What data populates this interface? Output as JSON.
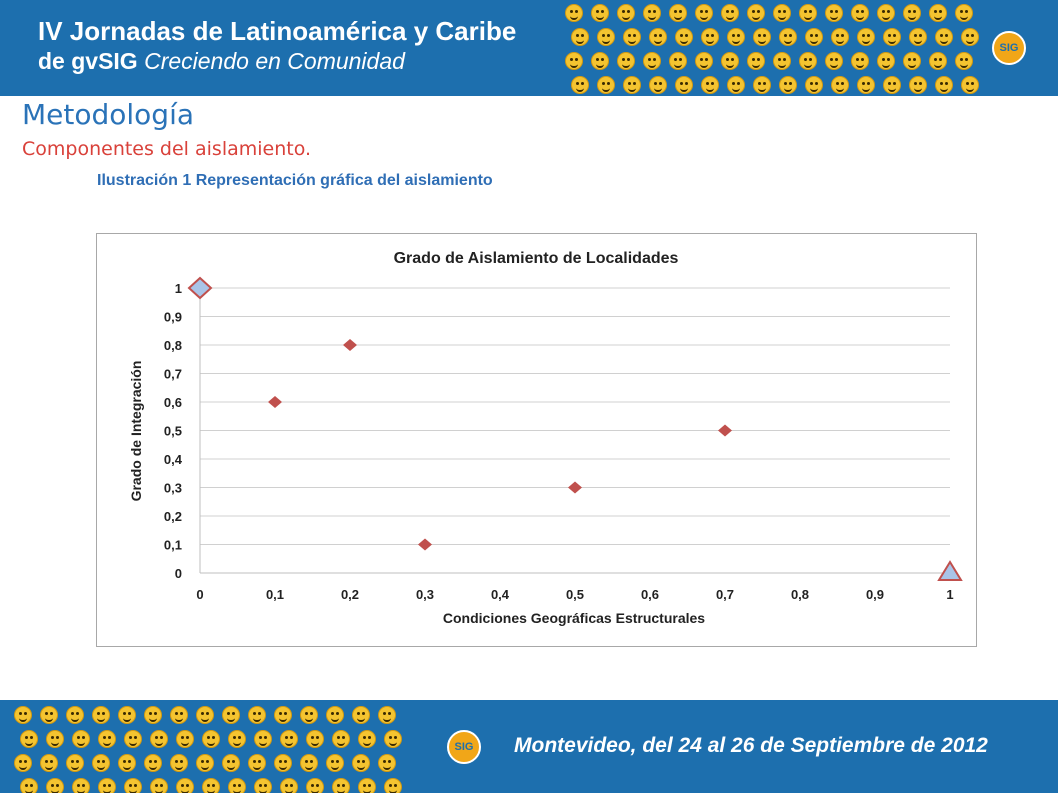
{
  "banner": {
    "title_line1": "IV Jornadas de Latinoamérica y Caribe",
    "title_line2_bold": "de gvSIG",
    "title_line2_italic": "Creciendo en Comunidad",
    "logo_text": "SIG"
  },
  "footer": {
    "text": "Montevideo, del 24 al 26 de Septiembre de 2012",
    "logo_text": "SIG"
  },
  "slide": {
    "heading": "Metodología",
    "subheading": "Componentes del aislamiento.",
    "caption": "Ilustración 1 Representación  gráfica del aislamiento"
  },
  "colors": {
    "banner_blue": "#1d6fae",
    "heading_blue": "#2a73b8",
    "subheading_red": "#d9413a",
    "marker_red": "#c0504d",
    "endpoint_fill": "#a9c4e8"
  },
  "chart_data": {
    "type": "scatter",
    "title": "Grado de Aislamiento de Localidades",
    "xlabel": "Condiciones Geográficas Estructurales",
    "ylabel": "Grado de Integración",
    "xlim": [
      0,
      1
    ],
    "ylim": [
      0,
      1
    ],
    "x_ticks": [
      "0",
      "0,1",
      "0,2",
      "0,3",
      "0,4",
      "0,5",
      "0,6",
      "0,7",
      "0,8",
      "0,9",
      "1"
    ],
    "y_ticks": [
      "0",
      "0,1",
      "0,2",
      "0,3",
      "0,4",
      "0,5",
      "0,6",
      "0,7",
      "0,8",
      "0,9",
      "1"
    ],
    "grid": "horizontal",
    "series": [
      {
        "marker": "diamond",
        "points": [
          [
            0.1,
            0.6
          ],
          [
            0.2,
            0.8
          ],
          [
            0.3,
            0.1
          ],
          [
            0.5,
            0.3
          ],
          [
            0.7,
            0.5
          ]
        ]
      },
      {
        "marker": "diamond-outlined",
        "points": [
          [
            0,
            1
          ]
        ]
      },
      {
        "marker": "triangle-outlined",
        "points": [
          [
            1,
            0
          ]
        ]
      }
    ]
  }
}
